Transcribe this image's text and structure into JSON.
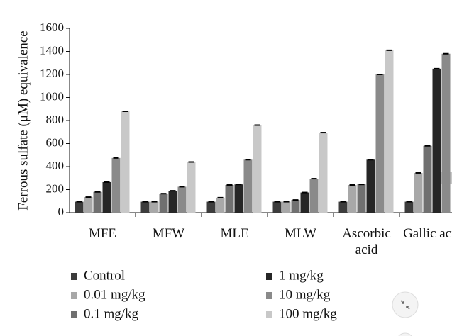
{
  "chart_data": {
    "type": "bar",
    "y_label": "Ferrous sulfate (μM) equivalence",
    "categories": [
      "MFE",
      "MFW",
      "MLE",
      "MLW",
      "Ascorbic acid",
      "Gallic acid"
    ],
    "series": [
      {
        "name": "Control",
        "color": "#3c3c3c",
        "values": [
          95,
          95,
          95,
          95,
          95,
          95
        ]
      },
      {
        "name": "0.01 mg/kg",
        "color": "#a8a8a8",
        "values": [
          135,
          95,
          130,
          95,
          240,
          345
        ]
      },
      {
        "name": "0.1 mg/kg",
        "color": "#707070",
        "values": [
          180,
          165,
          240,
          110,
          245,
          580
        ]
      },
      {
        "name": "1 mg/kg",
        "color": "#262626",
        "values": [
          265,
          190,
          245,
          175,
          460,
          1250
        ]
      },
      {
        "name": "10 mg/kg",
        "color": "#8a8a8a",
        "values": [
          475,
          225,
          460,
          295,
          1200,
          1380
        ]
      },
      {
        "name": "100 mg/kg",
        "color": "#c8c8c8",
        "values": [
          880,
          440,
          760,
          695,
          1410,
          null
        ]
      }
    ],
    "ylim": [
      0,
      1600
    ],
    "yticks": [
      0,
      200,
      400,
      600,
      800,
      1000,
      1200,
      1400,
      1600
    ]
  }
}
